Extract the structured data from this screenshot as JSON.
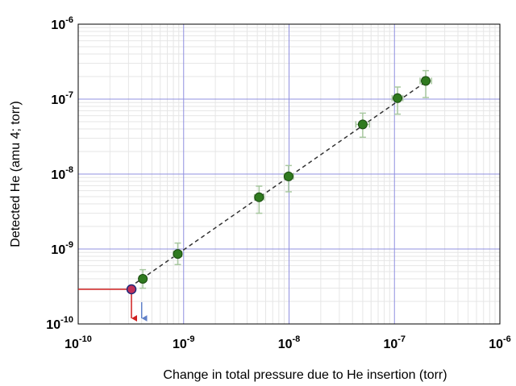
{
  "chart_data": {
    "type": "scatter",
    "xlabel": "Change in total pressure due to He insertion (torr)",
    "ylabel": "Detected He (amu 4; torr)",
    "xscale": "log",
    "yscale": "log",
    "xlim": [
      1e-10,
      1e-06
    ],
    "ylim": [
      1e-10,
      1e-06
    ],
    "x_ticks": [
      {
        "base": "10",
        "exp": "-10"
      },
      {
        "base": "10",
        "exp": "-9"
      },
      {
        "base": "10",
        "exp": "-8"
      },
      {
        "base": "10",
        "exp": "-7"
      },
      {
        "base": "10",
        "exp": "-6"
      }
    ],
    "y_ticks": [
      {
        "base": "10",
        "exp": "-10"
      },
      {
        "base": "10",
        "exp": "-9"
      },
      {
        "base": "10",
        "exp": "-8"
      },
      {
        "base": "10",
        "exp": "-7"
      },
      {
        "base": "10",
        "exp": "-6"
      }
    ],
    "grid": true,
    "points": [
      {
        "x": 4.1e-10,
        "y": 4e-10,
        "x_err": [
          3.8e-10,
          4.4e-10
        ],
        "y_err": [
          3e-10,
          5.3e-10
        ]
      },
      {
        "x": 8.8e-10,
        "y": 8.6e-10,
        "x_err": [
          8e-10,
          9.6e-10
        ],
        "y_err": [
          6.2e-10,
          1.2e-09
        ]
      },
      {
        "x": 5.2e-09,
        "y": 4.9e-09,
        "x_err": [
          4.7e-09,
          5.8e-09
        ],
        "y_err": [
          3e-09,
          6.9e-09
        ]
      },
      {
        "x": 9.9e-09,
        "y": 9.3e-09,
        "x_err": [
          9e-09,
          1.1e-08
        ],
        "y_err": [
          5.8e-09,
          1.3e-08
        ]
      },
      {
        "x": 5e-08,
        "y": 4.6e-08,
        "x_err": [
          4.3e-08,
          5.8e-08
        ],
        "y_err": [
          3.1e-08,
          6.5e-08
        ]
      },
      {
        "x": 1.07e-07,
        "y": 1.03e-07,
        "x_err": [
          9.5e-08,
          1.2e-07
        ],
        "y_err": [
          6.3e-08,
          1.45e-07
        ]
      },
      {
        "x": 1.98e-07,
        "y": 1.75e-07,
        "x_err": [
          1.75e-07,
          2.25e-07
        ],
        "y_err": [
          1.05e-07,
          2.4e-07
        ]
      }
    ],
    "fit_line": [
      [
        3.5e-10,
        3.5e-10
      ],
      [
        2.1e-07,
        1.8e-07
      ]
    ],
    "highlight_point": {
      "x": 3.2e-10,
      "y": 2.9e-10
    },
    "down_arrow_x": 4e-10,
    "colors": {
      "point_fill": "#2f7a1f",
      "error_bar": "#a8c8a0",
      "fit_line": "#333333",
      "major_grid": "#9090e0",
      "minor_grid": "#e6e6e6",
      "highlight_fill": "#c0305a",
      "highlight_stroke": "#1e2a7a",
      "highlight_lines": "#d02020",
      "down_arrow": "#6080c8"
    }
  }
}
